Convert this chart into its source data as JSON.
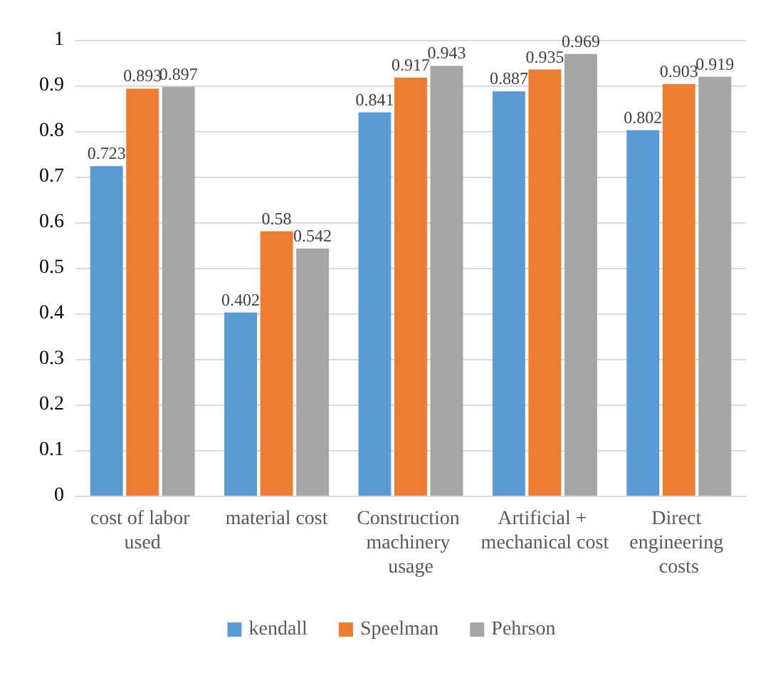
{
  "chart_data": {
    "type": "bar",
    "categories": [
      "cost of labor used",
      "material cost",
      "Construction machinery usage",
      "Artificial + mechanical cost",
      "Direct engineering costs"
    ],
    "series": [
      {
        "name": "kendall",
        "color": "#5b9bd5",
        "values": [
          0.723,
          0.402,
          0.841,
          0.887,
          0.802
        ]
      },
      {
        "name": "Speelman",
        "color": "#ed7d31",
        "values": [
          0.893,
          0.58,
          0.917,
          0.935,
          0.903
        ]
      },
      {
        "name": "Pehrson",
        "color": "#a5a5a5",
        "values": [
          0.897,
          0.542,
          0.943,
          0.969,
          0.919
        ]
      }
    ],
    "ylim": [
      0,
      1
    ],
    "yticks": [
      0,
      0.1,
      0.2,
      0.3,
      0.4,
      0.5,
      0.6,
      0.7,
      0.8,
      0.9,
      1
    ],
    "grid": "y",
    "legend": "bottom",
    "data_labels": true
  }
}
